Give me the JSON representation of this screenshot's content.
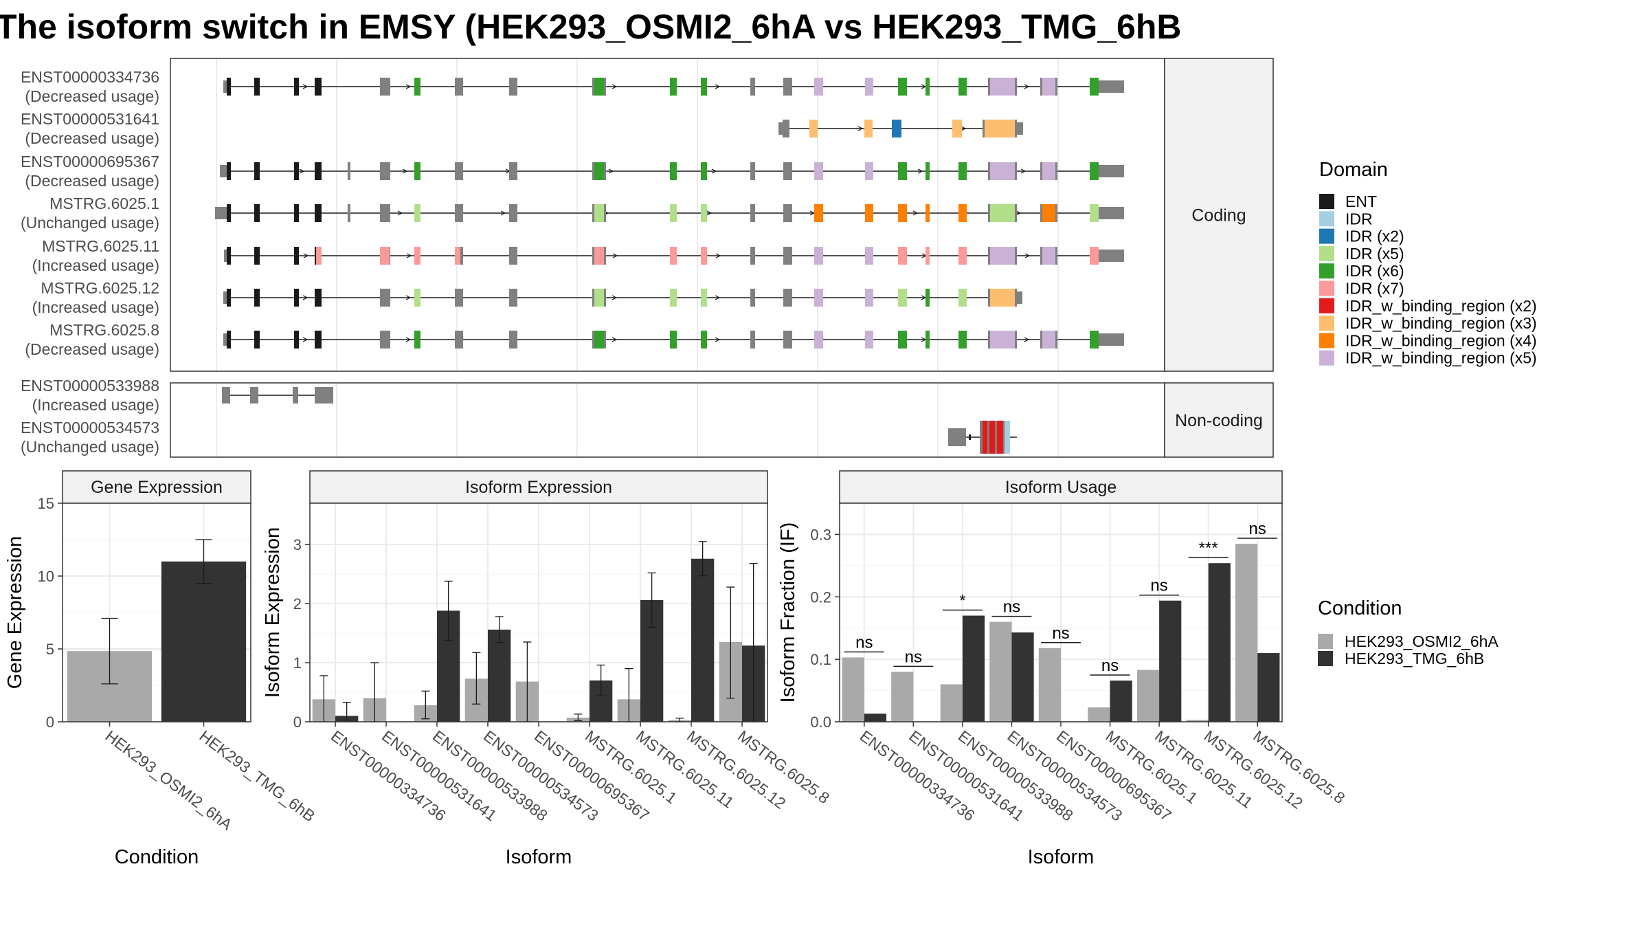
{
  "title": "The isoform switch in EMSY (HEK293_OSMI2_6hA vs HEK293_TMG_6hB",
  "transcript_plot": {
    "facets": [
      {
        "label": "Coding",
        "transcripts": [
          {
            "id": "ENST00000334736",
            "usage": "(Decreased usage)"
          },
          {
            "id": "ENST00000531641",
            "usage": "(Decreased usage)"
          },
          {
            "id": "ENST00000695367",
            "usage": "(Decreased usage)"
          },
          {
            "id": "MSTRG.6025.1",
            "usage": "(Unchanged usage)"
          },
          {
            "id": "MSTRG.6025.11",
            "usage": "(Increased usage)"
          },
          {
            "id": "MSTRG.6025.12",
            "usage": "(Increased usage)"
          },
          {
            "id": "MSTRG.6025.8",
            "usage": "(Decreased usage)"
          }
        ]
      },
      {
        "label": "Non-coding",
        "transcripts": [
          {
            "id": "ENST00000533988",
            "usage": "(Increased usage)"
          },
          {
            "id": "ENST00000534573",
            "usage": "(Unchanged usage)"
          }
        ]
      }
    ],
    "legend_title": "Domain",
    "domains": [
      {
        "name": "ENT",
        "color": "#1a1a1a"
      },
      {
        "name": "IDR",
        "color": "#a6cee3"
      },
      {
        "name": "IDR (x2)",
        "color": "#1f78b4"
      },
      {
        "name": "IDR (x5)",
        "color": "#b2df8a"
      },
      {
        "name": "IDR (x6)",
        "color": "#33a02c"
      },
      {
        "name": "IDR (x7)",
        "color": "#fb9a99"
      },
      {
        "name": "IDR_w_binding_region (x2)",
        "color": "#e31a1c"
      },
      {
        "name": "IDR_w_binding_region (x3)",
        "color": "#fdbf6f"
      },
      {
        "name": "IDR_w_binding_region (x4)",
        "color": "#ff7f00"
      },
      {
        "name": "IDR_w_binding_region (x5)",
        "color": "#cab2d6"
      }
    ]
  },
  "chart_data": [
    {
      "type": "bar",
      "title": "Gene Expression",
      "ylabel": "Gene Expression",
      "xlabel": "Condition",
      "ylim": [
        0,
        15
      ],
      "yticks": [
        0,
        5,
        10,
        15
      ],
      "categories": [
        "HEK293_OSMI2_6hA",
        "HEK293_TMG_6hB"
      ],
      "values": [
        4.85,
        11.0
      ],
      "error_low": [
        2.6,
        9.5
      ],
      "error_high": [
        7.1,
        12.5
      ]
    },
    {
      "type": "bar",
      "title": "Isoform Expression",
      "ylabel": "Isoform Expression",
      "xlabel": "Isoform",
      "ylim": [
        0,
        3.7
      ],
      "yticks": [
        0,
        1,
        2,
        3
      ],
      "categories": [
        "ENST00000334736",
        "ENST00000531641",
        "ENST00000533988",
        "ENST00000534573",
        "ENST00000695367",
        "MSTRG.6025.1",
        "MSTRG.6025.11",
        "MSTRG.6025.12",
        "MSTRG.6025.8"
      ],
      "series": [
        {
          "name": "HEK293_OSMI2_6hA",
          "values": [
            0.38,
            0.4,
            0.28,
            0.73,
            0.68,
            0.07,
            0.38,
            0.03,
            1.35
          ],
          "error_low": [
            0.0,
            0.0,
            0.05,
            0.3,
            0.0,
            0.02,
            0.0,
            0.0,
            0.4
          ],
          "error_high": [
            0.78,
            1.0,
            0.52,
            1.17,
            1.35,
            0.13,
            0.9,
            0.06,
            2.28
          ]
        },
        {
          "name": "HEK293_TMG_6hB",
          "values": [
            0.1,
            0.0,
            1.88,
            1.56,
            0.0,
            0.7,
            2.06,
            2.76,
            1.29
          ],
          "error_low": [
            0.0,
            0.0,
            1.38,
            1.34,
            0.0,
            0.44,
            1.6,
            2.47,
            0.0
          ],
          "error_high": [
            0.33,
            0.0,
            2.38,
            1.78,
            0.0,
            0.96,
            2.52,
            3.05,
            2.68
          ]
        }
      ]
    },
    {
      "type": "bar",
      "title": "Isoform Usage",
      "ylabel": "Isoform Fraction (IF)",
      "xlabel": "Isoform",
      "ylim": [
        0,
        0.35
      ],
      "yticks": [
        "0.0",
        "0.1",
        "0.2",
        "0.3"
      ],
      "categories": [
        "ENST00000334736",
        "ENST00000531641",
        "ENST00000533988",
        "ENST00000534573",
        "ENST00000695367",
        "MSTRG.6025.1",
        "MSTRG.6025.11",
        "MSTRG.6025.12",
        "MSTRG.6025.8"
      ],
      "series": [
        {
          "name": "HEK293_OSMI2_6hA",
          "values": [
            0.103,
            0.08,
            0.06,
            0.16,
            0.118,
            0.023,
            0.083,
            0.003,
            0.285
          ]
        },
        {
          "name": "HEK293_TMG_6hB",
          "values": [
            0.013,
            0.0,
            0.17,
            0.143,
            0.0,
            0.066,
            0.194,
            0.254,
            0.11
          ]
        }
      ],
      "significance": [
        "ns",
        "ns",
        "*",
        "ns",
        "ns",
        "ns",
        "ns",
        "***",
        "ns"
      ]
    }
  ],
  "condition_legend": {
    "title": "Condition",
    "entries": [
      {
        "name": "HEK293_OSMI2_6hA",
        "color": "#a9a9a9"
      },
      {
        "name": "HEK293_TMG_6hB",
        "color": "#333333"
      }
    ]
  }
}
